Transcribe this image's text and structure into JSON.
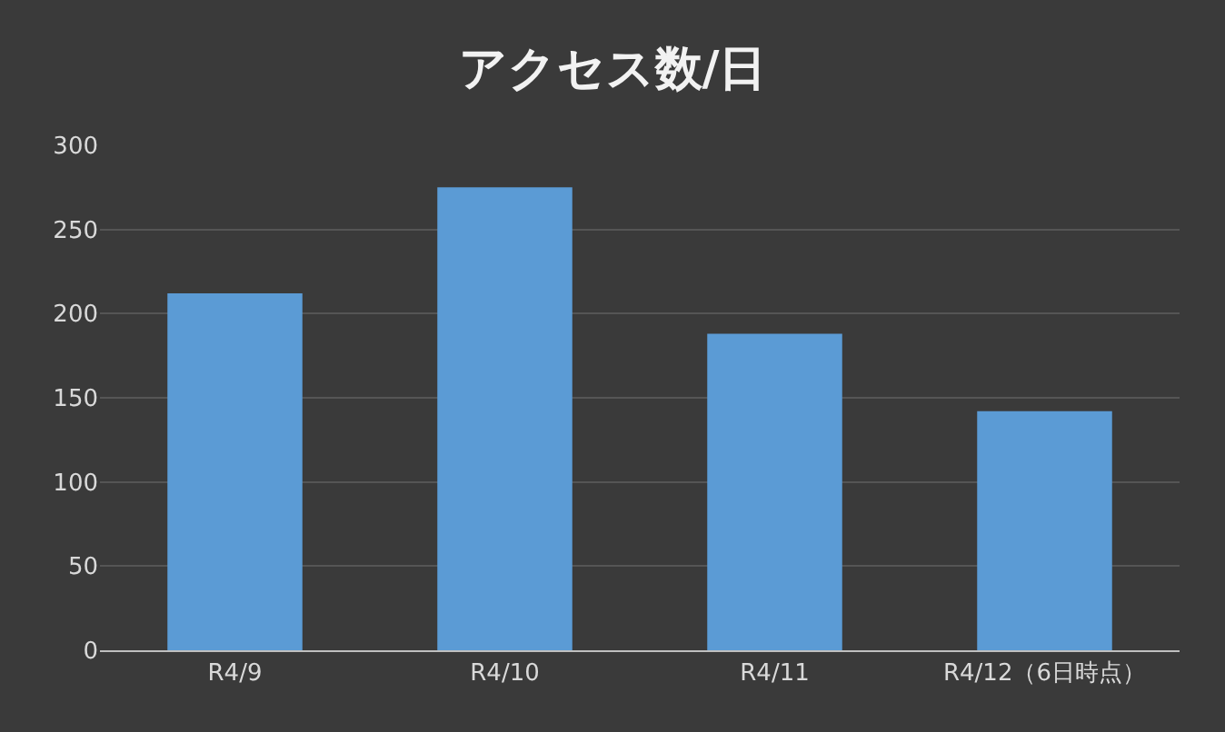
{
  "chart_data": {
    "type": "bar",
    "title": "アクセス数/日",
    "categories": [
      "R4/9",
      "R4/10",
      "R4/11",
      "R4/12（6日時点）"
    ],
    "values": [
      212,
      275,
      188,
      142
    ],
    "color": "#5b9bd5",
    "ylim": [
      0,
      300
    ],
    "yticks": [
      0,
      50,
      100,
      150,
      200,
      250,
      300
    ],
    "grid": "y"
  }
}
